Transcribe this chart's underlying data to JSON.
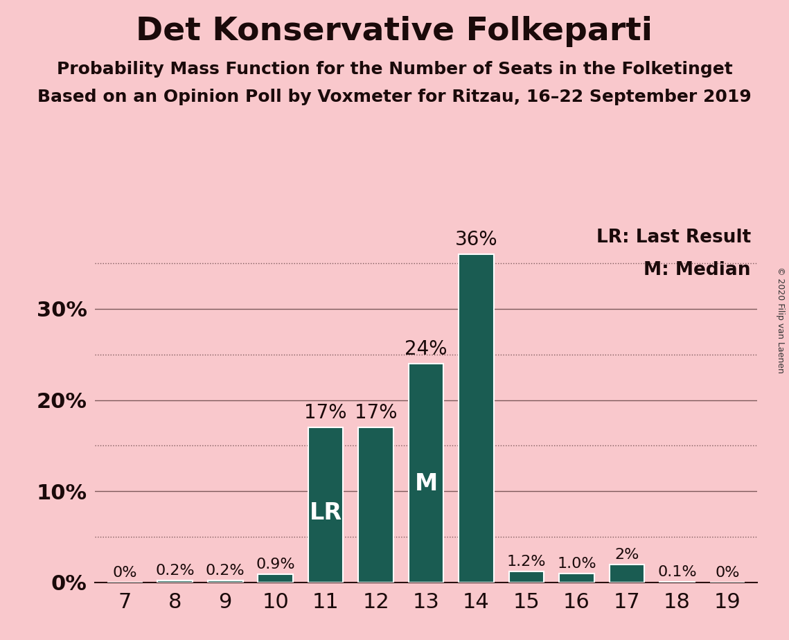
{
  "title": "Det Konservative Folkeparti",
  "subtitle1": "Probability Mass Function for the Number of Seats in the Folketinget",
  "subtitle2": "Based on an Opinion Poll by Voxmeter for Ritzau, 16–22 September 2019",
  "copyright": "© 2020 Filip van Laenen",
  "categories": [
    7,
    8,
    9,
    10,
    11,
    12,
    13,
    14,
    15,
    16,
    17,
    18,
    19
  ],
  "values": [
    0.0,
    0.2,
    0.2,
    0.9,
    17.0,
    17.0,
    24.0,
    36.0,
    1.2,
    1.0,
    2.0,
    0.1,
    0.0
  ],
  "labels": [
    "0%",
    "0.2%",
    "0.2%",
    "0.9%",
    "17%",
    "17%",
    "24%",
    "36%",
    "1.2%",
    "1.0%",
    "2%",
    "0.1%",
    "0%"
  ],
  "bar_color": "#1a5c52",
  "background_color": "#f9c8cc",
  "text_color": "#1a0a0a",
  "white_text_color": "#ffffff",
  "lr_seat": 11,
  "median_seat": 13,
  "ylim": [
    0,
    40
  ],
  "solid_yticks": [
    10,
    20,
    30
  ],
  "dotted_yticks": [
    5,
    15,
    25,
    35
  ],
  "title_fontsize": 34,
  "subtitle_fontsize": 18,
  "label_fontsize_small": 16,
  "label_fontsize_large": 20,
  "tick_fontsize": 22,
  "lr_m_label_fontsize": 24,
  "legend_fontsize": 19,
  "copyright_fontsize": 9
}
